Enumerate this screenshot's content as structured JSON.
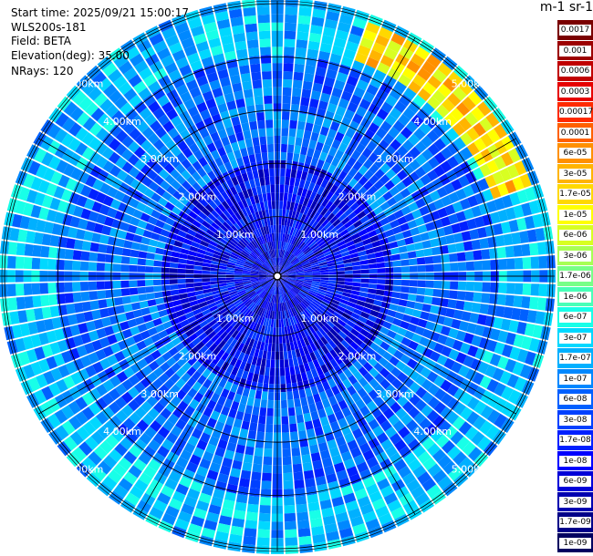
{
  "info": {
    "start_time": "Start time: 2025/09/21 15:00:17",
    "instrument": "WLS200s-181",
    "field": "Field: BETA",
    "elevation": "Elevation(deg): 35.00",
    "nrays": "NRays: 120"
  },
  "colorbar": {
    "unit_label": "m-1 sr-1",
    "labels": [
      "0.0017",
      "0.001",
      "0.0006",
      "0.0003",
      "0.00017",
      "0.0001",
      "6e-05",
      "3e-05",
      "1.7e-05",
      "1e-05",
      "6e-06",
      "3e-06",
      "1.7e-06",
      "1e-06",
      "6e-07",
      "3e-07",
      "1.7e-07",
      "1e-07",
      "6e-08",
      "3e-08",
      "1.7e-08",
      "1e-08",
      "6e-09",
      "3e-09",
      "1.7e-09",
      "1e-09"
    ],
    "colors": [
      "#7a0000",
      "#9c0000",
      "#c00000",
      "#e60000",
      "#ff2a00",
      "#ff6000",
      "#ff9000",
      "#ffb400",
      "#ffd800",
      "#ffff00",
      "#d8ff22",
      "#a8ff55",
      "#78ff88",
      "#48ffb8",
      "#18ffe8",
      "#00d8ff",
      "#00b0ff",
      "#0088ff",
      "#0060ff",
      "#0040ff",
      "#0020ff",
      "#0000ff",
      "#0000d8",
      "#0000b0",
      "#000088",
      "#000060"
    ]
  },
  "chart_data": {
    "type": "heatmap",
    "projection": "polar PPI",
    "field": "BETA",
    "elevation_deg": 35.0,
    "nrays": 120,
    "range_rings_km": [
      1,
      2,
      3,
      4,
      5
    ],
    "range_labels": [
      "1.00km",
      "2.00km",
      "3.00km",
      "4.00km",
      "5.00km"
    ],
    "max_range_km": 5.0,
    "scale": "log",
    "value_range": [
      1e-09,
      0.0017
    ],
    "regions": [
      {
        "description_value": "center",
        "range_km": [
          0,
          2
        ],
        "beta": 1e-08
      },
      {
        "description_value": "mid",
        "range_km": [
          2,
          4
        ],
        "beta": 6e-08
      },
      {
        "description_value": "outer",
        "range_km": [
          4,
          5
        ],
        "beta": 2e-07
      },
      {
        "description_value": "NE enhanced arc",
        "azimuth_deg": [
          20,
          70
        ],
        "range_km": [
          4.1,
          4.9
        ],
        "beta": 1.5e-05
      }
    ]
  }
}
